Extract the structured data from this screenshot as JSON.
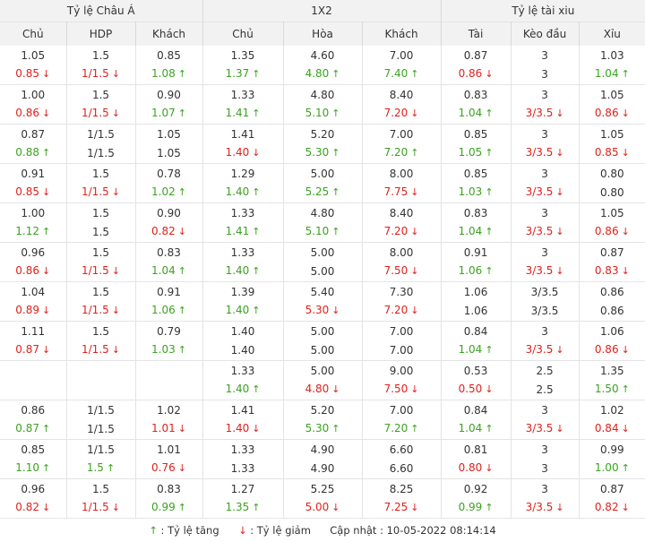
{
  "headers": {
    "groups": [
      "Tỷ lệ Châu Á",
      "1X2",
      "Tỷ lệ tài xiu"
    ],
    "columns": [
      "Chủ",
      "HDP",
      "Khách",
      "Chủ",
      "Hòa",
      "Khách",
      "Tài",
      "Kèo đầu",
      "Xỉu"
    ]
  },
  "rows": [
    {
      "open": [
        "1.05",
        "1.5",
        "0.85",
        "1.35",
        "4.60",
        "7.00",
        "0.87",
        "3",
        "1.03"
      ],
      "live": [
        {
          "v": "0.85",
          "d": "down"
        },
        {
          "v": "1/1.5",
          "d": "down"
        },
        {
          "v": "1.08",
          "d": "up"
        },
        {
          "v": "1.37",
          "d": "up"
        },
        {
          "v": "4.80",
          "d": "up"
        },
        {
          "v": "7.40",
          "d": "up"
        },
        {
          "v": "0.86",
          "d": "down"
        },
        {
          "v": "3",
          "d": ""
        },
        {
          "v": "1.04",
          "d": "up"
        }
      ]
    },
    {
      "open": [
        "1.00",
        "1.5",
        "0.90",
        "1.33",
        "4.80",
        "8.40",
        "0.83",
        "3",
        "1.05"
      ],
      "live": [
        {
          "v": "0.86",
          "d": "down"
        },
        {
          "v": "1/1.5",
          "d": "down"
        },
        {
          "v": "1.07",
          "d": "up"
        },
        {
          "v": "1.41",
          "d": "up"
        },
        {
          "v": "5.10",
          "d": "up"
        },
        {
          "v": "7.20",
          "d": "down"
        },
        {
          "v": "1.04",
          "d": "up"
        },
        {
          "v": "3/3.5",
          "d": "down"
        },
        {
          "v": "0.86",
          "d": "down"
        }
      ]
    },
    {
      "open": [
        "0.87",
        "1/1.5",
        "1.05",
        "1.41",
        "5.20",
        "7.00",
        "0.85",
        "3",
        "1.05"
      ],
      "live": [
        {
          "v": "0.88",
          "d": "up"
        },
        {
          "v": "1/1.5",
          "d": ""
        },
        {
          "v": "1.05",
          "d": ""
        },
        {
          "v": "1.40",
          "d": "down"
        },
        {
          "v": "5.30",
          "d": "up"
        },
        {
          "v": "7.20",
          "d": "up"
        },
        {
          "v": "1.05",
          "d": "up"
        },
        {
          "v": "3/3.5",
          "d": "down"
        },
        {
          "v": "0.85",
          "d": "down"
        }
      ]
    },
    {
      "open": [
        "0.91",
        "1.5",
        "0.78",
        "1.29",
        "5.00",
        "8.00",
        "0.85",
        "3",
        "0.80"
      ],
      "live": [
        {
          "v": "0.85",
          "d": "down"
        },
        {
          "v": "1/1.5",
          "d": "down"
        },
        {
          "v": "1.02",
          "d": "up"
        },
        {
          "v": "1.40",
          "d": "up"
        },
        {
          "v": "5.25",
          "d": "up"
        },
        {
          "v": "7.75",
          "d": "down"
        },
        {
          "v": "1.03",
          "d": "up"
        },
        {
          "v": "3/3.5",
          "d": "down"
        },
        {
          "v": "0.80",
          "d": ""
        }
      ]
    },
    {
      "open": [
        "1.00",
        "1.5",
        "0.90",
        "1.33",
        "4.80",
        "8.40",
        "0.83",
        "3",
        "1.05"
      ],
      "live": [
        {
          "v": "1.12",
          "d": "up"
        },
        {
          "v": "1.5",
          "d": ""
        },
        {
          "v": "0.82",
          "d": "down"
        },
        {
          "v": "1.41",
          "d": "up"
        },
        {
          "v": "5.10",
          "d": "up"
        },
        {
          "v": "7.20",
          "d": "down"
        },
        {
          "v": "1.04",
          "d": "up"
        },
        {
          "v": "3/3.5",
          "d": "down"
        },
        {
          "v": "0.86",
          "d": "down"
        }
      ]
    },
    {
      "open": [
        "0.96",
        "1.5",
        "0.83",
        "1.33",
        "5.00",
        "8.00",
        "0.91",
        "3",
        "0.87"
      ],
      "live": [
        {
          "v": "0.86",
          "d": "down"
        },
        {
          "v": "1/1.5",
          "d": "down"
        },
        {
          "v": "1.04",
          "d": "up"
        },
        {
          "v": "1.40",
          "d": "up"
        },
        {
          "v": "5.00",
          "d": ""
        },
        {
          "v": "7.50",
          "d": "down"
        },
        {
          "v": "1.06",
          "d": "up"
        },
        {
          "v": "3/3.5",
          "d": "down"
        },
        {
          "v": "0.83",
          "d": "down"
        }
      ]
    },
    {
      "open": [
        "1.04",
        "1.5",
        "0.91",
        "1.39",
        "5.40",
        "7.30",
        "1.06",
        "3/3.5",
        "0.86"
      ],
      "live": [
        {
          "v": "0.89",
          "d": "down"
        },
        {
          "v": "1/1.5",
          "d": "down"
        },
        {
          "v": "1.06",
          "d": "up"
        },
        {
          "v": "1.40",
          "d": "up"
        },
        {
          "v": "5.30",
          "d": "down"
        },
        {
          "v": "7.20",
          "d": "down"
        },
        {
          "v": "1.06",
          "d": ""
        },
        {
          "v": "3/3.5",
          "d": ""
        },
        {
          "v": "0.86",
          "d": ""
        }
      ]
    },
    {
      "open": [
        "1.11",
        "1.5",
        "0.79",
        "1.40",
        "5.00",
        "7.00",
        "0.84",
        "3",
        "1.06"
      ],
      "live": [
        {
          "v": "0.87",
          "d": "down"
        },
        {
          "v": "1/1.5",
          "d": "down"
        },
        {
          "v": "1.03",
          "d": "up"
        },
        {
          "v": "1.40",
          "d": ""
        },
        {
          "v": "5.00",
          "d": ""
        },
        {
          "v": "7.00",
          "d": ""
        },
        {
          "v": "1.04",
          "d": "up"
        },
        {
          "v": "3/3.5",
          "d": "down"
        },
        {
          "v": "0.86",
          "d": "down"
        }
      ]
    },
    {
      "open": [
        "",
        "",
        "",
        "1.33",
        "5.00",
        "9.00",
        "0.53",
        "2.5",
        "1.35"
      ],
      "live": [
        {
          "v": "",
          "d": ""
        },
        {
          "v": "",
          "d": ""
        },
        {
          "v": "",
          "d": ""
        },
        {
          "v": "1.40",
          "d": "up"
        },
        {
          "v": "4.80",
          "d": "down"
        },
        {
          "v": "7.50",
          "d": "down"
        },
        {
          "v": "0.50",
          "d": "down"
        },
        {
          "v": "2.5",
          "d": ""
        },
        {
          "v": "1.50",
          "d": "up"
        }
      ]
    },
    {
      "open": [
        "0.86",
        "1/1.5",
        "1.02",
        "1.41",
        "5.20",
        "7.00",
        "0.84",
        "3",
        "1.02"
      ],
      "live": [
        {
          "v": "0.87",
          "d": "up"
        },
        {
          "v": "1/1.5",
          "d": ""
        },
        {
          "v": "1.01",
          "d": "down"
        },
        {
          "v": "1.40",
          "d": "down"
        },
        {
          "v": "5.30",
          "d": "up"
        },
        {
          "v": "7.20",
          "d": "up"
        },
        {
          "v": "1.04",
          "d": "up"
        },
        {
          "v": "3/3.5",
          "d": "down"
        },
        {
          "v": "0.84",
          "d": "down"
        }
      ]
    },
    {
      "open": [
        "0.85",
        "1/1.5",
        "1.01",
        "1.33",
        "4.90",
        "6.60",
        "0.81",
        "3",
        "0.99"
      ],
      "live": [
        {
          "v": "1.10",
          "d": "up"
        },
        {
          "v": "1.5",
          "d": "up"
        },
        {
          "v": "0.76",
          "d": "down"
        },
        {
          "v": "1.33",
          "d": ""
        },
        {
          "v": "4.90",
          "d": ""
        },
        {
          "v": "6.60",
          "d": ""
        },
        {
          "v": "0.80",
          "d": "down"
        },
        {
          "v": "3",
          "d": ""
        },
        {
          "v": "1.00",
          "d": "up"
        }
      ]
    },
    {
      "open": [
        "0.96",
        "1.5",
        "0.83",
        "1.27",
        "5.25",
        "8.25",
        "0.92",
        "3",
        "0.87"
      ],
      "live": [
        {
          "v": "0.82",
          "d": "down"
        },
        {
          "v": "1/1.5",
          "d": "down"
        },
        {
          "v": "0.99",
          "d": "up"
        },
        {
          "v": "1.35",
          "d": "up"
        },
        {
          "v": "5.00",
          "d": "down"
        },
        {
          "v": "7.25",
          "d": "down"
        },
        {
          "v": "0.99",
          "d": "up"
        },
        {
          "v": "3/3.5",
          "d": "down"
        },
        {
          "v": "0.82",
          "d": "down"
        }
      ]
    }
  ],
  "arrows": {
    "up": "↑",
    "down": "↓"
  },
  "legend": {
    "up_icon": "↑",
    "up_label": ": Tỷ lệ tăng",
    "down_icon": "↓",
    "down_label": ": Tỷ lệ giảm",
    "updated": "Cập nhật : 10-05-2022 08:14:14"
  },
  "colors": {
    "up": "#3aa31f",
    "down": "#e0211b",
    "header_bg": "#f2f2f2"
  },
  "icons": {
    "up": "arrow-up-icon",
    "down": "arrow-down-icon"
  }
}
